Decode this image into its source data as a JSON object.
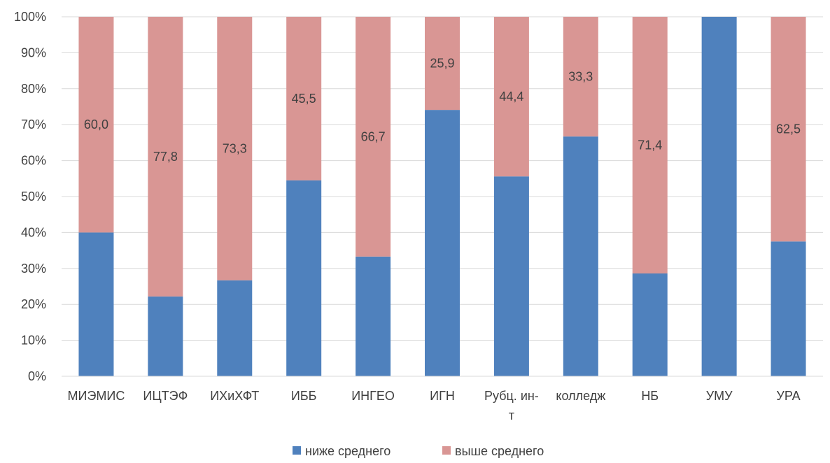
{
  "chart_data": {
    "type": "bar",
    "stacked": true,
    "percent_stacked": true,
    "categories": [
      "МИЭМИС",
      "ИЦТЭФ",
      "ИХиХФТ",
      "ИББ",
      "ИНГЕО",
      "ИГН",
      "Рубц. ин-т",
      "колледж",
      "НБ",
      "УМУ",
      "УРА"
    ],
    "series": [
      {
        "name": "ниже среднего",
        "color": "#4F81BD",
        "values": [
          40.0,
          22.2,
          26.7,
          54.5,
          33.3,
          74.1,
          55.6,
          66.7,
          28.6,
          100.0,
          37.5
        ],
        "labels": [
          "",
          "",
          "",
          "",
          "",
          "",
          "",
          "",
          "",
          "",
          ""
        ]
      },
      {
        "name": "выше среднего",
        "color": "#D99694",
        "values": [
          60.0,
          77.8,
          73.3,
          45.5,
          66.7,
          25.9,
          44.4,
          33.3,
          71.4,
          0,
          62.5
        ],
        "labels": [
          "60,0",
          "77,8",
          "73,3",
          "45,5",
          "66,7",
          "25,9",
          "44,4",
          "33,3",
          "71,4",
          "",
          "62,5"
        ]
      }
    ],
    "y_ticks": [
      "0%",
      "10%",
      "20%",
      "30%",
      "40%",
      "50%",
      "60%",
      "70%",
      "80%",
      "90%",
      "100%"
    ],
    "ylim": [
      0,
      100
    ],
    "grid": true,
    "legend_position": "bottom",
    "title": "",
    "xlabel": "",
    "ylabel": ""
  }
}
